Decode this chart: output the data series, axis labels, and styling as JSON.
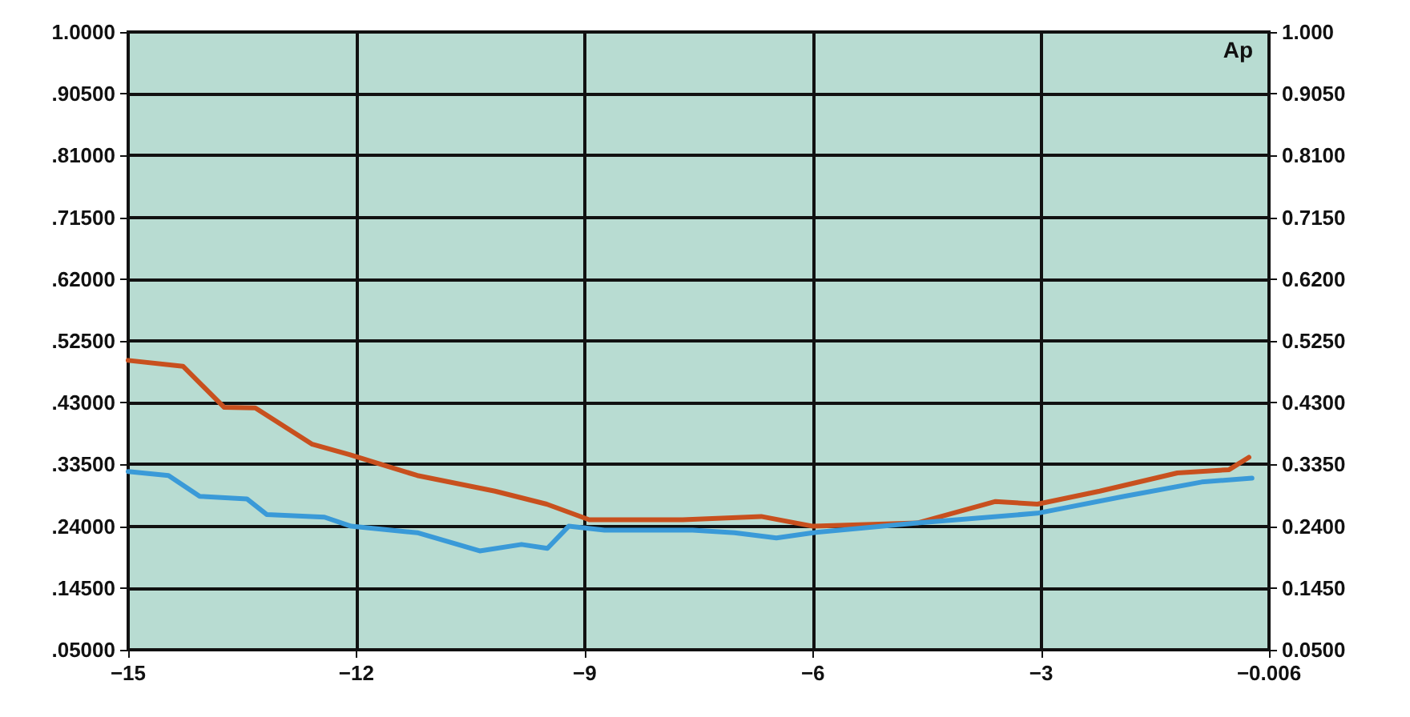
{
  "chart_data": {
    "type": "line",
    "annotations": [
      "Ap"
    ],
    "grid": true,
    "marker": "none",
    "line_style": "solid",
    "xlim": [
      -15,
      -0.006
    ],
    "xticks": [
      -15,
      -12,
      -9,
      -6,
      -3,
      -0.006
    ],
    "ylim": [
      0.05,
      1
    ],
    "yticks": [
      {
        "value": 0.05,
        "label": ".05000"
      },
      {
        "value": 0.145,
        "label": ".14500"
      },
      {
        "value": 0.24,
        "label": ".24000"
      },
      {
        "value": 0.335,
        "label": ".33500"
      },
      {
        "value": 0.43,
        "label": ".43000"
      },
      {
        "value": 0.525,
        "label": ".52500"
      },
      {
        "value": 0.62,
        "label": ".62000"
      },
      {
        "value": 0.715,
        "label": ".71500"
      },
      {
        "value": 0.81,
        "label": ".81000"
      },
      {
        "value": 0.905,
        "label": ".90500"
      },
      {
        "value": 1,
        "label": "1.0000"
      }
    ],
    "y2lim": [
      0.05,
      1
    ],
    "y2ticks": [
      {
        "value": 0.05,
        "label": "0.0500"
      },
      {
        "value": 0.145,
        "label": "0.1450"
      },
      {
        "value": 0.24,
        "label": "0.2400"
      },
      {
        "value": 0.335,
        "label": "0.3350"
      },
      {
        "value": 0.43,
        "label": "0.4300"
      },
      {
        "value": 0.525,
        "label": "0.5250"
      },
      {
        "value": 0.62,
        "label": "0.6200"
      },
      {
        "value": 0.715,
        "label": "0.7150"
      },
      {
        "value": 0.81,
        "label": "0.8100"
      },
      {
        "value": 0.905,
        "label": "0.9050"
      },
      {
        "value": 1,
        "label": "1.000"
      }
    ],
    "series": [
      {
        "color": "#c8501e",
        "x": [
          -15,
          -14.28,
          -13.74,
          -13.33,
          -12.58,
          -12.09,
          -11.2,
          -10.18,
          -9.5,
          -8.94,
          -7.71,
          -6.68,
          -6,
          -4.63,
          -3.6,
          -3.05,
          -2.23,
          -1.21,
          -0.53,
          -0.27
        ],
        "values": [
          0.495,
          0.486,
          0.423,
          0.422,
          0.366,
          0.35,
          0.318,
          0.294,
          0.274,
          0.25,
          0.25,
          0.255,
          0.24,
          0.245,
          0.278,
          0.274,
          0.294,
          0.322,
          0.327,
          0.346
        ]
      },
      {
        "color": "#3a9ad8",
        "x": [
          -15,
          -14.47,
          -14.06,
          -13.44,
          -13.18,
          -12.42,
          -12.07,
          -11.2,
          -10.38,
          -9.83,
          -9.49,
          -9.21,
          -8.74,
          -7.58,
          -7.03,
          -6.48,
          -6,
          -4.63,
          -3.05,
          -1.91,
          -0.89,
          -0.23
        ],
        "values": [
          0.324,
          0.318,
          0.286,
          0.282,
          0.258,
          0.254,
          0.24,
          0.23,
          0.202,
          0.212,
          0.206,
          0.24,
          0.234,
          0.234,
          0.23,
          0.222,
          0.23,
          0.245,
          0.26,
          0.286,
          0.308,
          0.314
        ]
      }
    ]
  }
}
